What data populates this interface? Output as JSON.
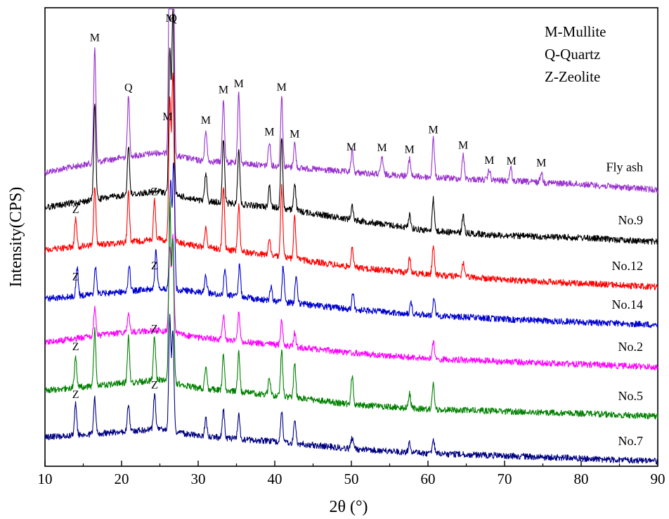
{
  "chart_data": {
    "type": "line",
    "title": "",
    "xlabel": "2θ (°)",
    "ylabel": "Intensity(CPS)",
    "xlim": [
      10,
      90
    ],
    "x_ticks": [
      10,
      20,
      30,
      40,
      50,
      60,
      70,
      80,
      90
    ],
    "grid": false,
    "legend_text": [
      "M-Mullite",
      "Q-Quartz",
      "Z-Zeolite"
    ],
    "legend_placement": "top-right",
    "colors": {
      "Fly ash": "#9933cc",
      "No.9": "#000000",
      "No.12": "#ff0000",
      "No.14": "#0000cc",
      "No.2": "#ff00ff",
      "No.5": "#008000",
      "No.7": "#000080"
    },
    "series": [
      {
        "name": "Fly ash",
        "baseline": [
          [
            10,
            245
          ],
          [
            20,
            224
          ],
          [
            25,
            217
          ],
          [
            30,
            228
          ],
          [
            40,
            236
          ],
          [
            50,
            245
          ],
          [
            60,
            252
          ],
          [
            70,
            257
          ],
          [
            80,
            262
          ],
          [
            90,
            270
          ]
        ],
        "peaks": [
          [
            16.5,
            165
          ],
          [
            20.9,
            85
          ],
          [
            26.3,
            400
          ],
          [
            26.7,
            480
          ],
          [
            31.0,
            45
          ],
          [
            33.3,
            90
          ],
          [
            35.3,
            100
          ],
          [
            39.3,
            35
          ],
          [
            40.9,
            100
          ],
          [
            42.6,
            35
          ],
          [
            50.1,
            30
          ],
          [
            54.0,
            25
          ],
          [
            57.6,
            25
          ],
          [
            60.7,
            55
          ],
          [
            64.6,
            35
          ],
          [
            68.0,
            15
          ],
          [
            70.8,
            20
          ],
          [
            74.8,
            15
          ]
        ],
        "annotations": [
          {
            "label": "M",
            "x": 16.5
          },
          {
            "label": "Q",
            "x": 20.9
          },
          {
            "label": "M",
            "x": 26.0
          },
          {
            "label": "M",
            "x": 26.4
          },
          {
            "label": "Q",
            "x": 26.7
          },
          {
            "label": "M",
            "x": 31.0
          },
          {
            "label": "M",
            "x": 33.3
          },
          {
            "label": "M",
            "x": 35.3
          },
          {
            "label": "M",
            "x": 39.3
          },
          {
            "label": "M",
            "x": 40.9
          },
          {
            "label": "M",
            "x": 42.6
          },
          {
            "label": "M",
            "x": 50.0
          },
          {
            "label": "M",
            "x": 54.0
          },
          {
            "label": "M",
            "x": 57.6
          },
          {
            "label": "M",
            "x": 60.7
          },
          {
            "label": "M",
            "x": 64.6
          },
          {
            "label": "M",
            "x": 68.0
          },
          {
            "label": "M",
            "x": 70.9
          },
          {
            "label": "M",
            "x": 74.8
          }
        ]
      },
      {
        "name": "No.9",
        "baseline": [
          [
            10,
            295
          ],
          [
            20,
            278
          ],
          [
            25,
            272
          ],
          [
            30,
            285
          ],
          [
            40,
            295
          ],
          [
            50,
            312
          ],
          [
            60,
            328
          ],
          [
            70,
            335
          ],
          [
            80,
            338
          ],
          [
            90,
            344
          ]
        ],
        "peaks": [
          [
            16.5,
            140
          ],
          [
            20.9,
            70
          ],
          [
            26.3,
            200
          ],
          [
            26.7,
            260
          ],
          [
            31.0,
            40
          ],
          [
            33.3,
            90
          ],
          [
            35.3,
            80
          ],
          [
            39.3,
            30
          ],
          [
            40.9,
            100
          ],
          [
            42.6,
            40
          ],
          [
            50.1,
            20
          ],
          [
            57.6,
            20
          ],
          [
            60.7,
            45
          ],
          [
            64.6,
            25
          ]
        ],
        "annotations": []
      },
      {
        "name": "No.12",
        "baseline": [
          [
            10,
            355
          ],
          [
            20,
            345
          ],
          [
            25,
            340
          ],
          [
            30,
            350
          ],
          [
            40,
            364
          ],
          [
            50,
            380
          ],
          [
            60,
            390
          ],
          [
            70,
            398
          ],
          [
            80,
            403
          ],
          [
            90,
            408
          ]
        ],
        "peaks": [
          [
            14.0,
            40
          ],
          [
            16.5,
            85
          ],
          [
            20.9,
            70
          ],
          [
            24.3,
            55
          ],
          [
            26.3,
            200
          ],
          [
            26.7,
            240
          ],
          [
            31.0,
            30
          ],
          [
            33.3,
            90
          ],
          [
            35.3,
            65
          ],
          [
            39.3,
            25
          ],
          [
            40.9,
            100
          ],
          [
            42.6,
            60
          ],
          [
            50.1,
            30
          ],
          [
            57.6,
            20
          ],
          [
            60.7,
            40
          ],
          [
            64.6,
            20
          ]
        ],
        "annotations": [
          {
            "label": "Z",
            "x": 14.0
          },
          {
            "label": "Z",
            "x": 24.3
          }
        ]
      },
      {
        "name": "No.14",
        "baseline": [
          [
            10,
            425
          ],
          [
            20,
            415
          ],
          [
            25,
            410
          ],
          [
            30,
            415
          ],
          [
            40,
            428
          ],
          [
            50,
            440
          ],
          [
            60,
            448
          ],
          [
            70,
            454
          ],
          [
            80,
            458
          ],
          [
            90,
            462
          ]
        ],
        "peaks": [
          [
            14.2,
            40
          ],
          [
            16.6,
            40
          ],
          [
            21.0,
            35
          ],
          [
            24.5,
            55
          ],
          [
            26.4,
            150
          ],
          [
            26.8,
            180
          ],
          [
            31.0,
            25
          ],
          [
            33.5,
            40
          ],
          [
            35.4,
            45
          ],
          [
            39.5,
            20
          ],
          [
            41.1,
            50
          ],
          [
            42.8,
            40
          ],
          [
            50.2,
            25
          ],
          [
            57.8,
            15
          ],
          [
            60.8,
            25
          ]
        ],
        "annotations": [
          {
            "label": "Z",
            "x": 14.0
          },
          {
            "label": "Z",
            "x": 24.3
          }
        ]
      },
      {
        "name": "No.2",
        "baseline": [
          [
            10,
            487
          ],
          [
            20,
            473
          ],
          [
            25,
            470
          ],
          [
            30,
            480
          ],
          [
            40,
            490
          ],
          [
            50,
            502
          ],
          [
            60,
            510
          ],
          [
            70,
            514
          ],
          [
            80,
            518
          ],
          [
            90,
            522
          ]
        ],
        "peaks": [
          [
            16.5,
            40
          ],
          [
            20.9,
            25
          ],
          [
            26.3,
            120
          ],
          [
            26.7,
            140
          ],
          [
            33.3,
            35
          ],
          [
            35.3,
            40
          ],
          [
            40.9,
            35
          ],
          [
            42.6,
            20
          ],
          [
            60.7,
            25
          ]
        ],
        "annotations": []
      },
      {
        "name": "No.5",
        "baseline": [
          [
            10,
            555
          ],
          [
            20,
            545
          ],
          [
            25,
            540
          ],
          [
            30,
            552
          ],
          [
            40,
            562
          ],
          [
            50,
            575
          ],
          [
            60,
            582
          ],
          [
            70,
            585
          ],
          [
            80,
            588
          ],
          [
            90,
            592
          ]
        ],
        "peaks": [
          [
            14.0,
            45
          ],
          [
            16.5,
            80
          ],
          [
            20.9,
            65
          ],
          [
            24.3,
            60
          ],
          [
            26.3,
            260
          ],
          [
            26.7,
            200
          ],
          [
            31.0,
            30
          ],
          [
            33.3,
            50
          ],
          [
            35.3,
            55
          ],
          [
            39.3,
            25
          ],
          [
            40.9,
            65
          ],
          [
            42.6,
            50
          ],
          [
            50.1,
            40
          ],
          [
            57.6,
            20
          ],
          [
            60.7,
            35
          ]
        ],
        "annotations": [
          {
            "label": "Z",
            "x": 14.0
          },
          {
            "label": "Z",
            "x": 24.3
          }
        ]
      },
      {
        "name": "No.7",
        "baseline": [
          [
            10,
            622
          ],
          [
            20,
            614
          ],
          [
            25,
            610
          ],
          [
            30,
            620
          ],
          [
            40,
            628
          ],
          [
            50,
            638
          ],
          [
            60,
            645
          ],
          [
            70,
            648
          ],
          [
            80,
            652
          ],
          [
            90,
            656
          ]
        ],
        "peaks": [
          [
            14.0,
            45
          ],
          [
            16.5,
            50
          ],
          [
            20.9,
            40
          ],
          [
            24.3,
            50
          ],
          [
            26.3,
            160
          ],
          [
            26.7,
            140
          ],
          [
            31.0,
            25
          ],
          [
            33.3,
            40
          ],
          [
            35.3,
            35
          ],
          [
            40.9,
            45
          ],
          [
            42.6,
            35
          ],
          [
            50.1,
            15
          ],
          [
            57.6,
            15
          ],
          [
            60.7,
            20
          ]
        ],
        "annotations": [
          {
            "label": "Z",
            "x": 14.0
          },
          {
            "label": "Z",
            "x": 24.3
          }
        ]
      }
    ]
  }
}
